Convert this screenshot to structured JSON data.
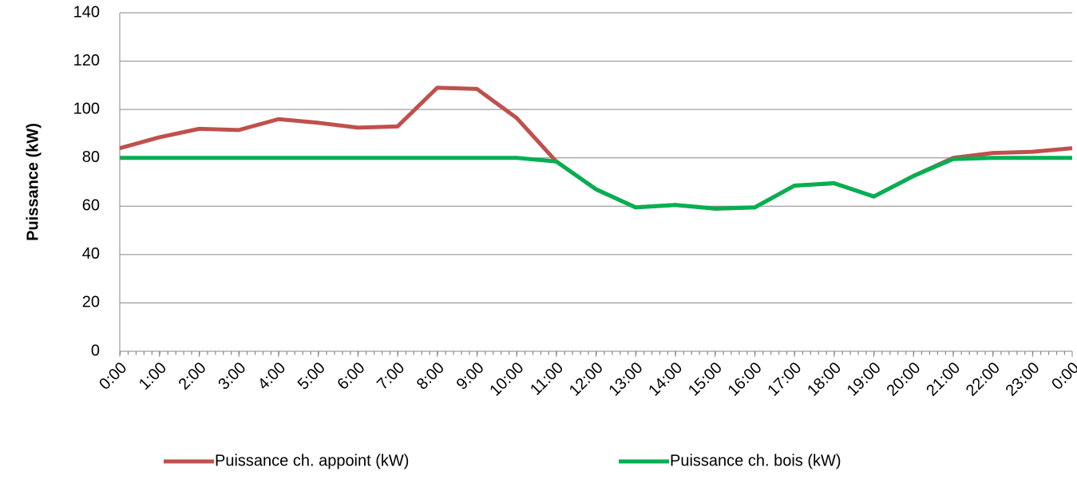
{
  "chart_data": {
    "type": "line",
    "y_label": "Puissance (kW)",
    "categories": [
      "0:00",
      "1:00",
      "2:00",
      "3:00",
      "4:00",
      "5:00",
      "6:00",
      "7:00",
      "8:00",
      "9:00",
      "10:00",
      "11:00",
      "12:00",
      "13:00",
      "14:00",
      "15:00",
      "16:00",
      "17:00",
      "18:00",
      "19:00",
      "20:00",
      "21:00",
      "22:00",
      "23:00",
      "0:00"
    ],
    "series": [
      {
        "name": "Puissance ch. appoint (kW)",
        "color": "#c0504d",
        "values": [
          84,
          88.5,
          92,
          91.5,
          96,
          94.5,
          92.5,
          93,
          109,
          108.5,
          96.5,
          78.5,
          67,
          59.5,
          60.5,
          59,
          59.5,
          68.5,
          69.5,
          64,
          72.5,
          80,
          82,
          82.5,
          84
        ]
      },
      {
        "name": "Puissance ch. bois (kW)",
        "color": "#00b050",
        "values": [
          80,
          80,
          80,
          80,
          80,
          80,
          80,
          80,
          80,
          80,
          80,
          78.5,
          67,
          59.5,
          60.5,
          59,
          59.5,
          68.5,
          69.5,
          64,
          72.5,
          79.5,
          80,
          80,
          80
        ]
      }
    ],
    "ylim": [
      0,
      140
    ],
    "yticks": [
      0,
      20,
      40,
      60,
      80,
      100,
      120,
      140
    ],
    "grid": true
  }
}
